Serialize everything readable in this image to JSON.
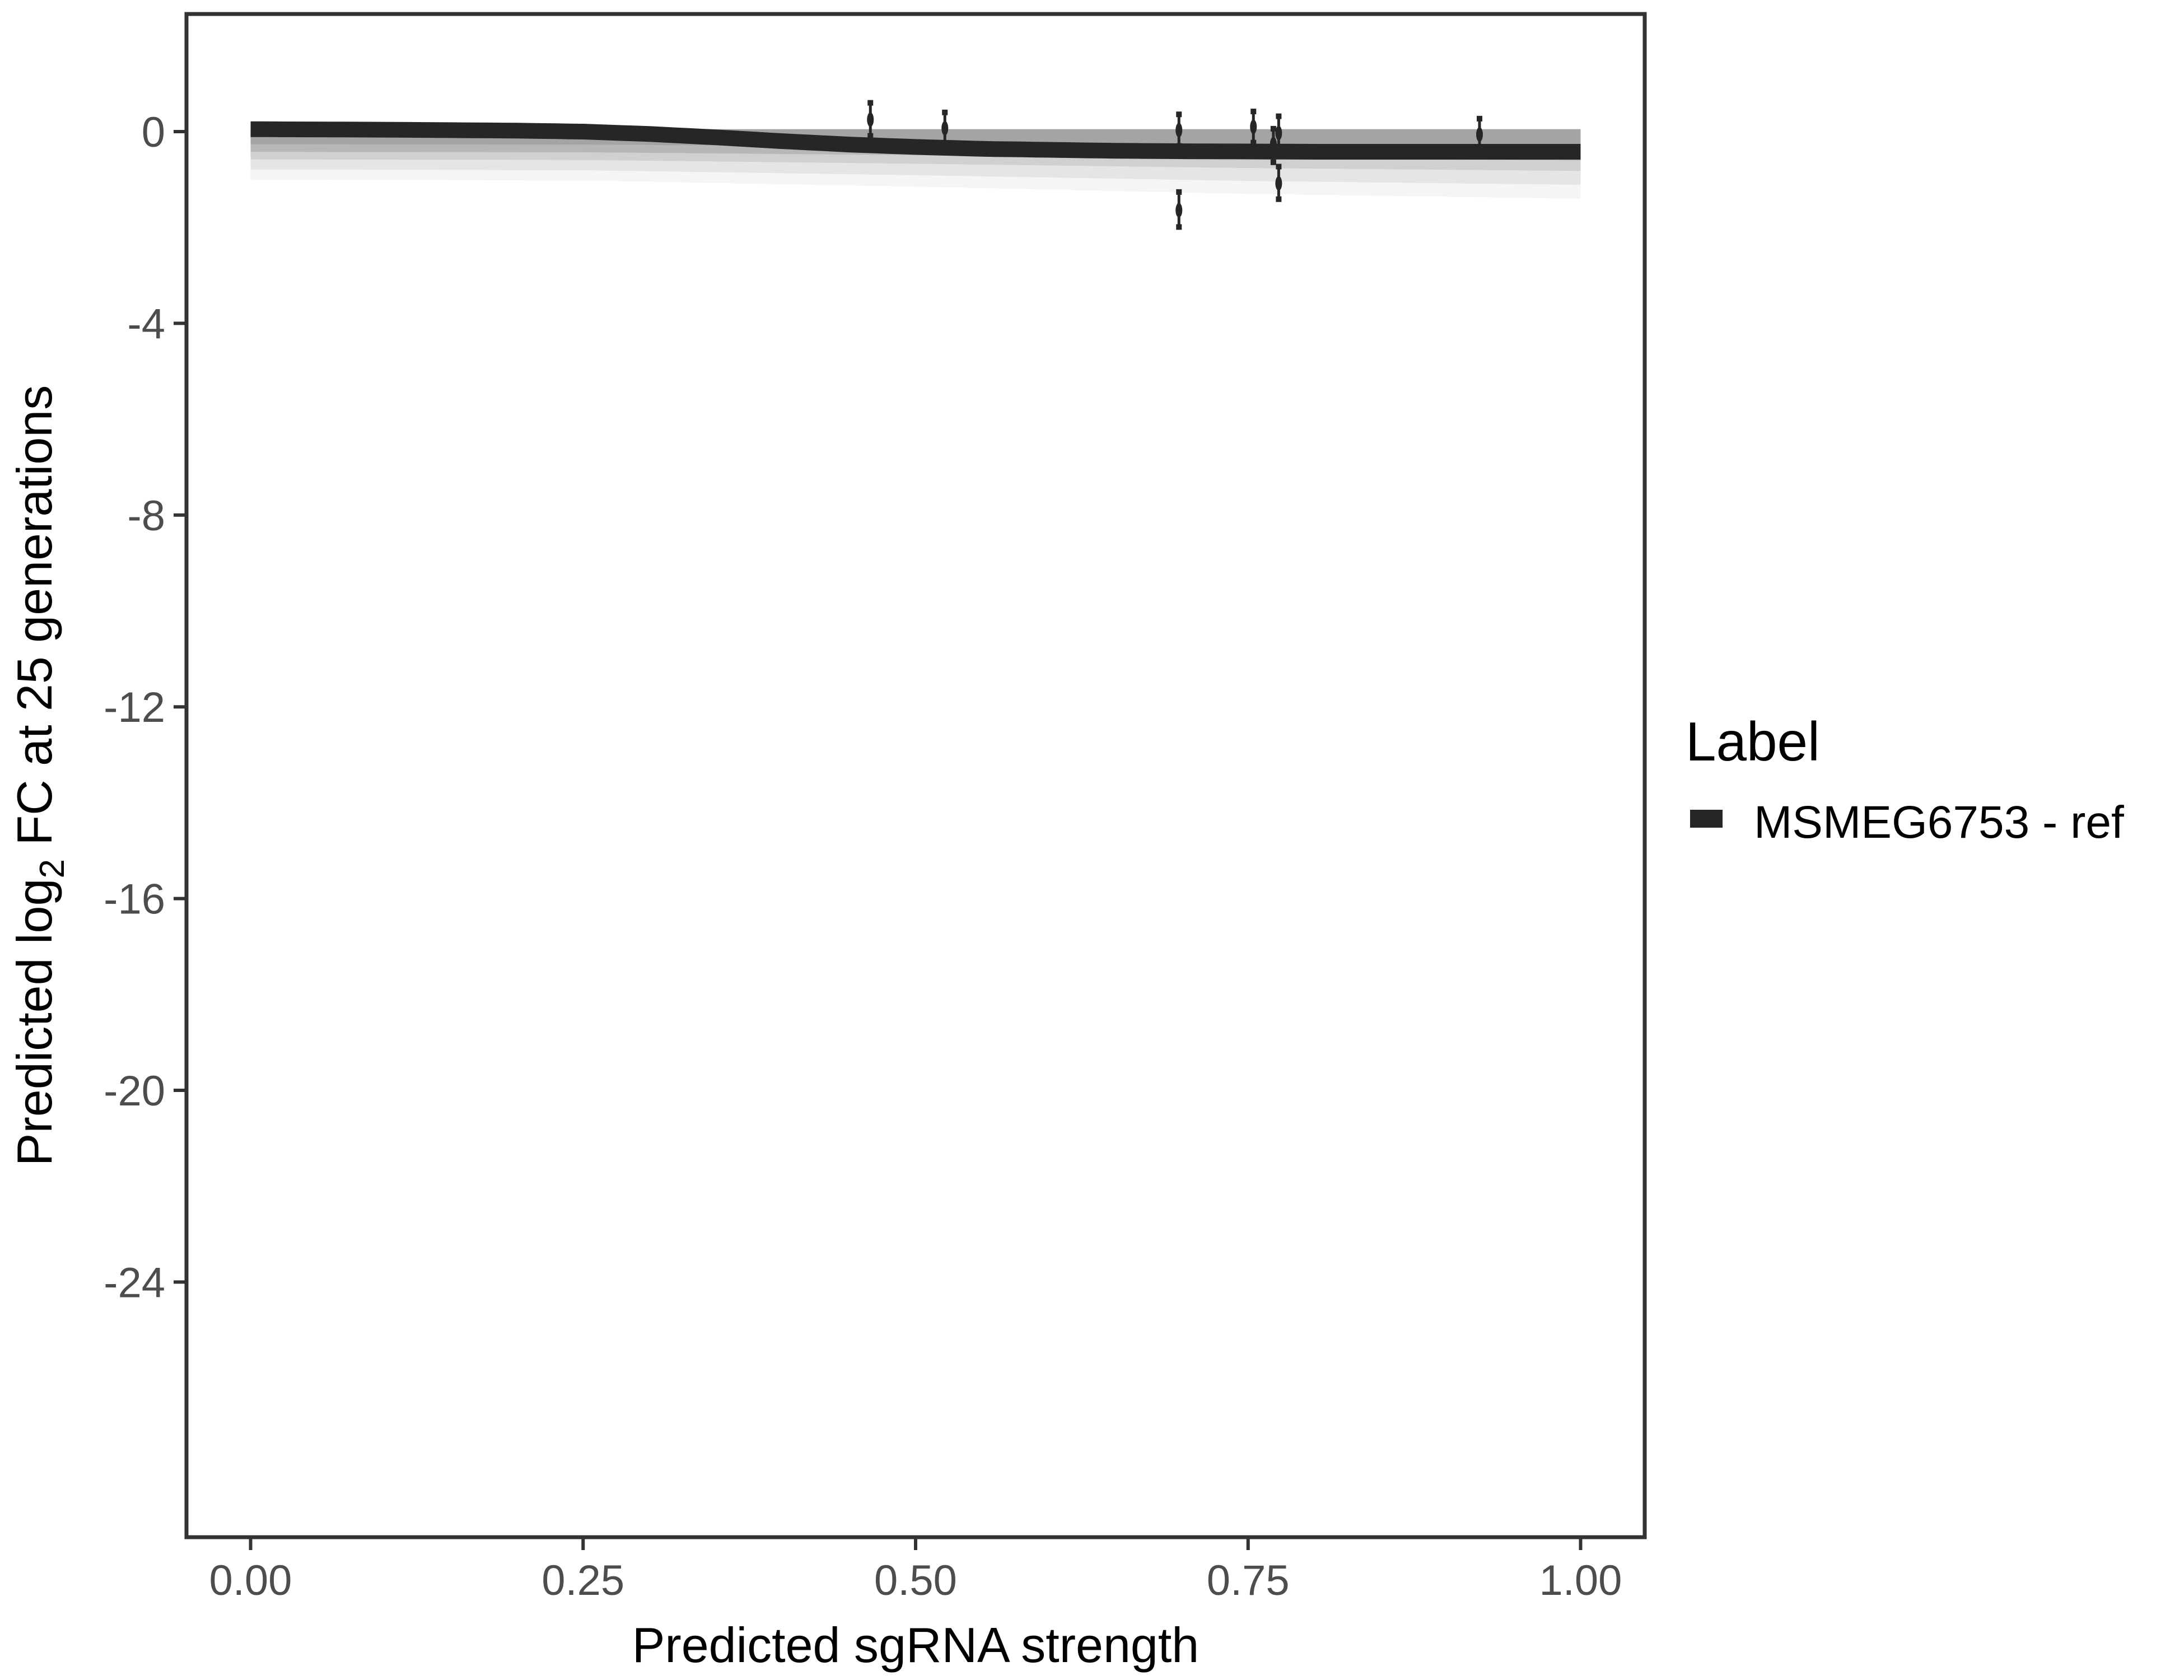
{
  "chart_data": {
    "type": "line",
    "xlabel": "Predicted sgRNA strength",
    "ylabel_parts": {
      "prefix": "Predicted  log",
      "subscript": "2",
      "suffix": " FC at 25 generations"
    },
    "xlim": [
      -0.05,
      1.05
    ],
    "ylim": [
      -29.3,
      2.45
    ],
    "x_ticks": [
      "0.00",
      "0.25",
      "0.50",
      "0.75",
      "1.00"
    ],
    "x_tick_values": [
      0,
      0.25,
      0.5,
      0.75,
      1.0
    ],
    "y_ticks": [
      "0",
      "-4",
      "-8",
      "-12",
      "-16",
      "-20",
      "-24"
    ],
    "y_tick_values": [
      0,
      -4,
      -8,
      -12,
      -16,
      -20,
      -24
    ],
    "grid": false,
    "legend": {
      "title": "Label",
      "position": "right",
      "entries": [
        "MSMEG6753 - ref"
      ]
    },
    "series": [
      {
        "name": "MSMEG6753 - ref",
        "color": "#262626",
        "fit_line": {
          "x": [
            0,
            0.1,
            0.2,
            0.25,
            0.3,
            0.35,
            0.4,
            0.45,
            0.5,
            0.55,
            0.6,
            0.65,
            0.7,
            0.8,
            0.9,
            1.0
          ],
          "y": [
            0.05,
            0.04,
            0.02,
            0.0,
            -0.05,
            -0.12,
            -0.2,
            -0.27,
            -0.32,
            -0.36,
            -0.38,
            -0.4,
            -0.41,
            -0.42,
            -0.42,
            -0.42
          ]
        },
        "posterior_band": {
          "color": "#9e9e9e",
          "x": [
            0,
            0.25,
            0.5,
            0.75,
            1.0
          ],
          "upper": [
            0.05,
            0.05,
            0.05,
            0.05,
            0.05
          ],
          "lower": [
            -1.0,
            -1.02,
            -1.15,
            -1.3,
            -1.4
          ]
        },
        "points": [
          {
            "x": 0.466,
            "y": 0.25,
            "ymin": -0.09,
            "ymax": 0.6
          },
          {
            "x": 0.522,
            "y": 0.07,
            "ymin": -0.26,
            "ymax": 0.4
          },
          {
            "x": 0.698,
            "y": 0.03,
            "ymin": -0.3,
            "ymax": 0.36
          },
          {
            "x": 0.698,
            "y": -1.64,
            "ymin": -1.99,
            "ymax": -1.26
          },
          {
            "x": 0.754,
            "y": 0.1,
            "ymin": -0.23,
            "ymax": 0.42
          },
          {
            "x": 0.769,
            "y": -0.26,
            "ymin": -0.64,
            "ymax": 0.06
          },
          {
            "x": 0.773,
            "y": -0.03,
            "ymin": -0.38,
            "ymax": 0.32
          },
          {
            "x": 0.773,
            "y": -1.08,
            "ymin": -1.41,
            "ymax": -0.73
          },
          {
            "x": 0.924,
            "y": -0.06,
            "ymin": -0.39,
            "ymax": 0.27
          }
        ]
      }
    ]
  }
}
